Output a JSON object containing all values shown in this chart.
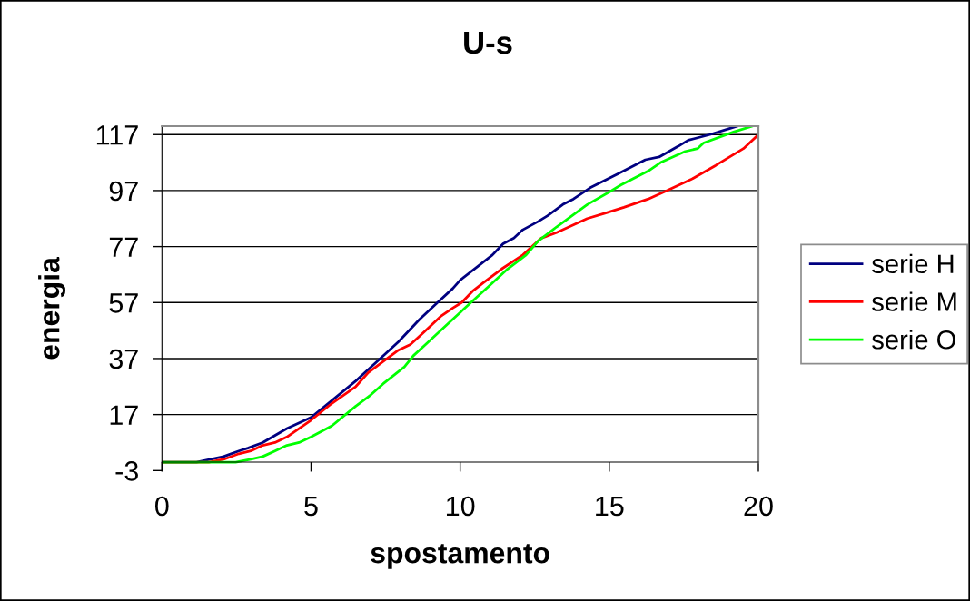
{
  "chart_data": {
    "type": "line",
    "title": "U-s",
    "xlabel": "spostamento",
    "ylabel": "energia",
    "xlim": [
      0,
      20
    ],
    "xticks": [
      0,
      5,
      10,
      15,
      20
    ],
    "ylim": [
      -3,
      120
    ],
    "yticks": [
      -3,
      17,
      37,
      57,
      77,
      97,
      117
    ],
    "grid": "y",
    "legend": "right",
    "line_style": "solid",
    "series": [
      {
        "name": "serie H",
        "color": "#000080",
        "x": [
          0,
          0.86,
          1.16,
          2.07,
          2.58,
          2.88,
          3.38,
          4.19,
          5.0,
          5.7,
          6.5,
          7.22,
          7.93,
          8.64,
          9.24,
          9.75,
          10.0,
          11.08,
          11.44,
          11.8,
          12.1,
          12.62,
          12.93,
          13.44,
          13.8,
          14.36,
          15.29,
          16.21,
          16.67,
          17.34,
          17.65,
          18.37,
          18.98,
          19.3
        ],
        "values": [
          0,
          0,
          0,
          2,
          4,
          5,
          7,
          12,
          16,
          22,
          29,
          36,
          43,
          51,
          57,
          62,
          65,
          74,
          78,
          80,
          83,
          86,
          88,
          92,
          94,
          98,
          103,
          108,
          109,
          113,
          115,
          117,
          119,
          120
        ]
      },
      {
        "name": "serie M",
        "color": "#ff0000",
        "x": [
          0,
          1.57,
          2.07,
          2.58,
          2.98,
          3.38,
          3.79,
          4.19,
          5.0,
          5.7,
          6.5,
          6.92,
          7.42,
          7.93,
          8.33,
          8.74,
          9.34,
          9.75,
          10.05,
          10.41,
          10.77,
          11.39,
          12.1,
          12.72,
          13.23,
          14.26,
          14.88,
          15.49,
          16.31,
          16.93,
          17.34,
          17.75,
          18.57,
          19.5,
          20
        ],
        "values": [
          0,
          0,
          1,
          3,
          4,
          6,
          7,
          9,
          15,
          21,
          27,
          32,
          36,
          40,
          42,
          46,
          52,
          55,
          57,
          61,
          64,
          69,
          74,
          80,
          82,
          87,
          89,
          91,
          94,
          97,
          99,
          101,
          106,
          112,
          117
        ]
      },
      {
        "name": "serie O",
        "color": "#00ff00",
        "x": [
          0,
          1.67,
          2.47,
          2.98,
          3.38,
          3.79,
          4.19,
          4.6,
          5.0,
          5.7,
          6.5,
          7.0,
          7.42,
          8.13,
          8.43,
          8.84,
          9.24,
          9.75,
          10.36,
          10.98,
          11.59,
          12.21,
          12.62,
          13.23,
          14.26,
          15.08,
          15.39,
          16.31,
          16.72,
          17.55,
          17.96,
          18.16,
          19.19,
          19.8
        ],
        "values": [
          0,
          0,
          0,
          1,
          2,
          4,
          6,
          7,
          9,
          13,
          20,
          24,
          28,
          34,
          38,
          42,
          46,
          51,
          57,
          63,
          69,
          74,
          79,
          84,
          92,
          97,
          99,
          104,
          107,
          111,
          112,
          114,
          118,
          120
        ]
      }
    ]
  }
}
